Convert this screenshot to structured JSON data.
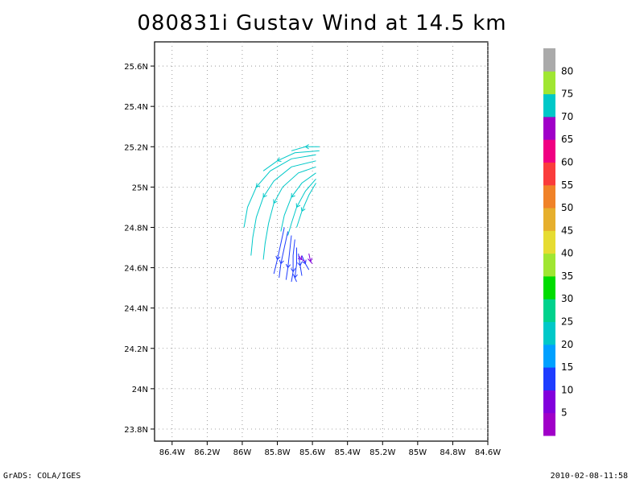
{
  "title": "080831i Gustav Wind at 14.5 km",
  "footer_left": "GrADS: COLA/IGES",
  "footer_right": "2010-02-08-11:58",
  "chart_data": {
    "type": "streamline",
    "title": "080831i Gustav Wind at 14.5 km",
    "x_ticks": [
      "86.4W",
      "86.2W",
      "86W",
      "85.8W",
      "85.6W",
      "85.4W",
      "85.2W",
      "85W",
      "84.8W",
      "84.6W"
    ],
    "x_tick_values": [
      -86.4,
      -86.2,
      -86.0,
      -85.8,
      -85.6,
      -85.4,
      -85.2,
      -85.0,
      -84.8,
      -84.6
    ],
    "y_ticks": [
      "23.8N",
      "24N",
      "24.2N",
      "24.4N",
      "24.6N",
      "24.8N",
      "25N",
      "25.2N",
      "25.4N",
      "25.6N"
    ],
    "y_tick_values": [
      23.8,
      24.0,
      24.2,
      24.4,
      24.6,
      24.8,
      25.0,
      25.2,
      25.4,
      25.6
    ],
    "xlim": [
      -86.5,
      -84.6
    ],
    "ylim": [
      23.74,
      25.72
    ],
    "grid": true,
    "colorbar": {
      "labels": [
        "5",
        "10",
        "15",
        "20",
        "25",
        "30",
        "35",
        "40",
        "45",
        "50",
        "55",
        "60",
        "65",
        "70",
        "75",
        "80"
      ],
      "colors": [
        "#a000c8",
        "#8200dc",
        "#1e3cff",
        "#00a0ff",
        "#00c8c8",
        "#00d28c",
        "#00dc00",
        "#a0e632",
        "#e6dc32",
        "#e6af2d",
        "#f08228",
        "#fa3c3c",
        "#f00082",
        "#a000c8",
        "#00c8c8",
        "#a0e632",
        "#aaaaaa"
      ]
    },
    "streamlines": [
      {
        "color": "#00c8c8",
        "points": [
          [
            -85.56,
            25.2
          ],
          [
            -85.64,
            25.2
          ],
          [
            -85.72,
            25.18
          ]
        ]
      },
      {
        "color": "#00c8c8",
        "points": [
          [
            -85.56,
            25.18
          ],
          [
            -85.7,
            25.17
          ],
          [
            -85.8,
            25.13
          ],
          [
            -85.88,
            25.08
          ]
        ]
      },
      {
        "color": "#00c8c8",
        "points": [
          [
            -85.58,
            25.16
          ],
          [
            -85.72,
            25.14
          ],
          [
            -85.84,
            25.08
          ],
          [
            -85.92,
            25.0
          ],
          [
            -85.97,
            24.9
          ],
          [
            -85.99,
            24.8
          ]
        ]
      },
      {
        "color": "#00c8c8",
        "points": [
          [
            -85.58,
            25.13
          ],
          [
            -85.72,
            25.1
          ],
          [
            -85.82,
            25.03
          ],
          [
            -85.88,
            24.95
          ],
          [
            -85.92,
            24.85
          ],
          [
            -85.94,
            24.75
          ],
          [
            -85.95,
            24.66
          ]
        ]
      },
      {
        "color": "#00c8c8",
        "points": [
          [
            -85.58,
            25.1
          ],
          [
            -85.68,
            25.07
          ],
          [
            -85.77,
            25.0
          ],
          [
            -85.82,
            24.92
          ],
          [
            -85.85,
            24.82
          ],
          [
            -85.87,
            24.72
          ],
          [
            -85.88,
            24.64
          ]
        ]
      },
      {
        "color": "#00c8c8",
        "points": [
          [
            -85.58,
            25.07
          ],
          [
            -85.66,
            25.02
          ],
          [
            -85.72,
            24.95
          ],
          [
            -85.76,
            24.86
          ],
          [
            -85.78,
            24.78
          ]
        ]
      },
      {
        "color": "#00c8c8",
        "points": [
          [
            -85.58,
            25.04
          ],
          [
            -85.64,
            24.98
          ],
          [
            -85.69,
            24.9
          ],
          [
            -85.72,
            24.82
          ],
          [
            -85.74,
            24.76
          ]
        ]
      },
      {
        "color": "#00c8c8",
        "points": [
          [
            -85.58,
            25.02
          ],
          [
            -85.62,
            24.96
          ],
          [
            -85.66,
            24.88
          ],
          [
            -85.69,
            24.8
          ]
        ]
      },
      {
        "color": "#1e3cff",
        "points": [
          [
            -85.76,
            24.8
          ],
          [
            -85.78,
            24.72
          ],
          [
            -85.8,
            24.64
          ],
          [
            -85.82,
            24.57
          ]
        ]
      },
      {
        "color": "#1e3cff",
        "points": [
          [
            -85.74,
            24.78
          ],
          [
            -85.76,
            24.7
          ],
          [
            -85.78,
            24.62
          ],
          [
            -85.79,
            24.55
          ]
        ]
      },
      {
        "color": "#1e3cff",
        "points": [
          [
            -85.72,
            24.76
          ],
          [
            -85.73,
            24.68
          ],
          [
            -85.74,
            24.6
          ],
          [
            -85.75,
            24.54
          ]
        ]
      },
      {
        "color": "#1e3cff",
        "points": [
          [
            -85.7,
            24.74
          ],
          [
            -85.71,
            24.66
          ],
          [
            -85.71,
            24.58
          ],
          [
            -85.72,
            24.53
          ]
        ]
      },
      {
        "color": "#1e3cff",
        "points": [
          [
            -85.69,
            24.7
          ],
          [
            -85.69,
            24.62
          ],
          [
            -85.7,
            24.55
          ],
          [
            -85.69,
            24.53
          ]
        ]
      },
      {
        "color": "#1e3cff",
        "points": [
          [
            -85.68,
            24.67
          ],
          [
            -85.67,
            24.61
          ],
          [
            -85.66,
            24.56
          ]
        ]
      },
      {
        "color": "#1e3cff",
        "points": [
          [
            -85.66,
            24.66
          ],
          [
            -85.64,
            24.62
          ],
          [
            -85.62,
            24.59
          ]
        ]
      },
      {
        "color": "#8200dc",
        "points": [
          [
            -85.62,
            24.67
          ],
          [
            -85.61,
            24.63
          ],
          [
            -85.6,
            24.62
          ]
        ]
      },
      {
        "color": "#8200dc",
        "points": [
          [
            -85.68,
            24.66
          ],
          [
            -85.66,
            24.64
          ],
          [
            -85.64,
            24.63
          ]
        ]
      }
    ]
  }
}
